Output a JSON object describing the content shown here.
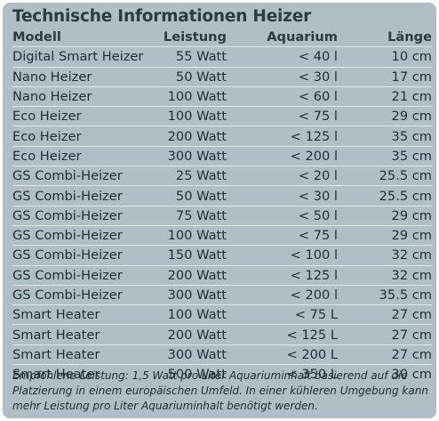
{
  "title": "Technische Informationen Heizer",
  "columns": {
    "model": "Modell",
    "power": "Leistung",
    "aquarium": "Aquarium",
    "length": "Länge"
  },
  "rows": [
    {
      "model": "Digital Smart Heizer",
      "power": "55 Watt",
      "aquarium": "< 40 l",
      "length": "10 cm"
    },
    {
      "model": "Nano Heizer",
      "power": "50 Watt",
      "aquarium": "< 30 l",
      "length": "17 cm"
    },
    {
      "model": "Nano Heizer",
      "power": "100 Watt",
      "aquarium": "< 60 l",
      "length": "21 cm"
    },
    {
      "model": "Eco Heizer",
      "power": "100 Watt",
      "aquarium": "< 75 l",
      "length": "29 cm"
    },
    {
      "model": "Eco Heizer",
      "power": "200 Watt",
      "aquarium": "< 125 l",
      "length": "35 cm"
    },
    {
      "model": "Eco Heizer",
      "power": "300 Watt",
      "aquarium": "< 200 l",
      "length": "35 cm"
    },
    {
      "model": "GS Combi-Heizer",
      "power": "25 Watt",
      "aquarium": "< 20 l",
      "length": "25.5 cm"
    },
    {
      "model": "GS Combi-Heizer",
      "power": "50 Watt",
      "aquarium": "< 30 l",
      "length": "25.5 cm"
    },
    {
      "model": "GS Combi-Heizer",
      "power": "75 Watt",
      "aquarium": "< 50 l",
      "length": "29 cm"
    },
    {
      "model": "GS Combi-Heizer",
      "power": "100 Watt",
      "aquarium": "< 75 l",
      "length": "29 cm"
    },
    {
      "model": "GS Combi-Heizer",
      "power": "150 Watt",
      "aquarium": "< 100 l",
      "length": "32 cm"
    },
    {
      "model": "GS Combi-Heizer",
      "power": "200 Watt",
      "aquarium": "< 125 l",
      "length": "32 cm"
    },
    {
      "model": "GS Combi-Heizer",
      "power": "300 Watt",
      "aquarium": "< 200 l",
      "length": "35.5 cm"
    },
    {
      "model": "Smart Heater",
      "power": "100 Watt",
      "aquarium": "< 75 L",
      "length": "27 cm"
    },
    {
      "model": "Smart Heater",
      "power": "200 Watt",
      "aquarium": "< 125 L",
      "length": "27 cm"
    },
    {
      "model": "Smart Heater",
      "power": "300 Watt",
      "aquarium": "< 200 L",
      "length": "27 cm"
    },
    {
      "model": "Smart Heater",
      "power": "500 Watt",
      "aquarium": "< 350 L",
      "length": "30 cm"
    }
  ],
  "footnote": "Empfohlene Leistung: 1,5 Watt pro Liter Aquariuminhalt basierend auf die Platzierung in einem europäischen Umfeld. In einer kühleren Umgebung kann mehr Leistung pro Liter Aquariuminhalt benötigt werden.",
  "colors": {
    "panel_background": "#b0bec5",
    "row_divider": "#dfe6ea",
    "text": "#1f2c33"
  }
}
